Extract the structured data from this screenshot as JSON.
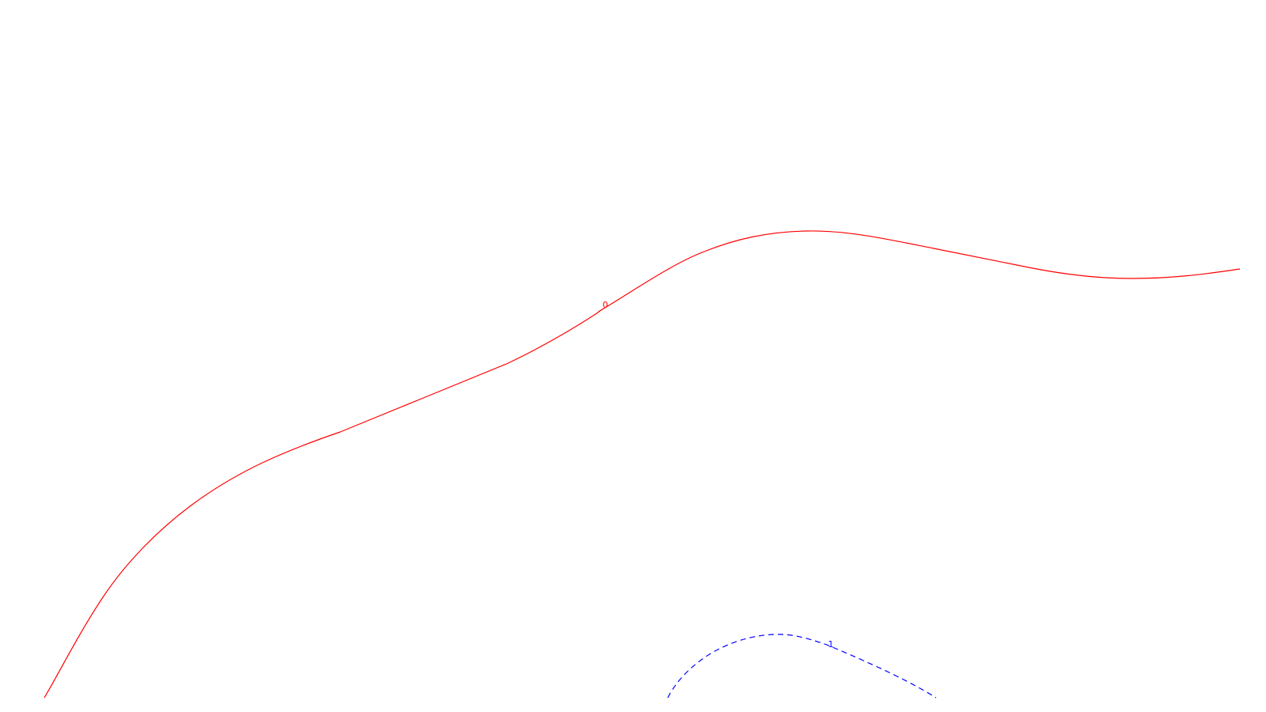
{
  "chart_data": {
    "type": "contour",
    "background": "#ffffff",
    "contours": [
      {
        "level": "0",
        "color": "#ff0000",
        "line_style": "solid"
      },
      {
        "level": "1",
        "color": "#0000ff",
        "line_style": "dashed"
      }
    ]
  }
}
